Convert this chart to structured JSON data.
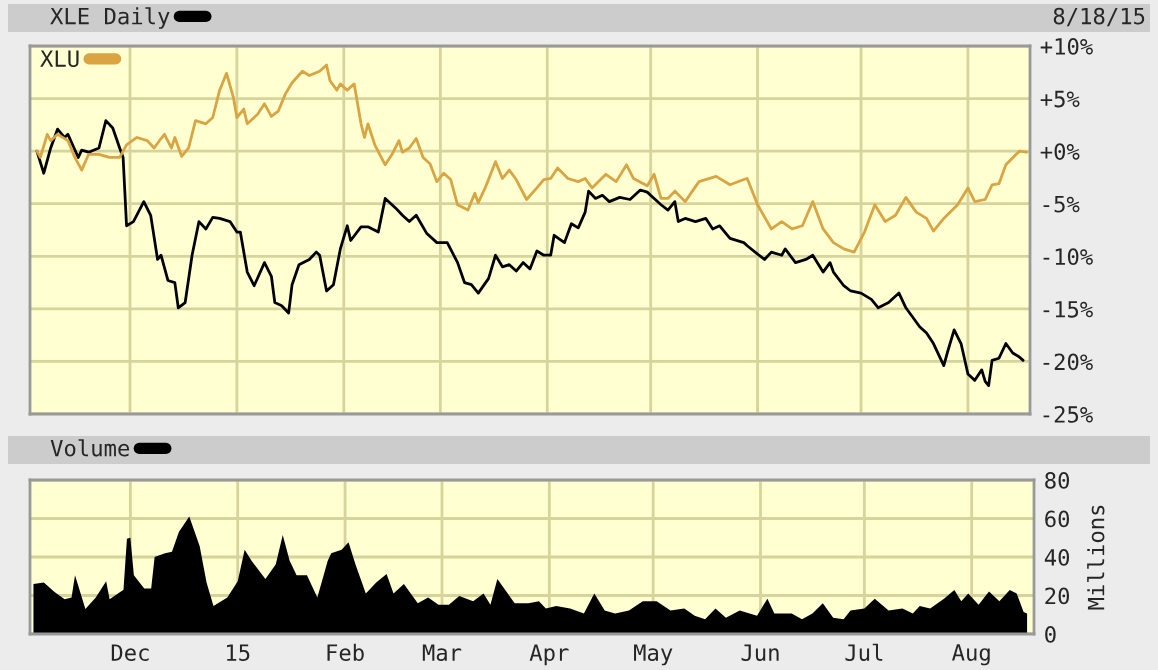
{
  "chart_data": [
    {
      "type": "line",
      "annotations": [
        "8/18/15"
      ],
      "legend": "top left",
      "grid": true,
      "tick_labels": "y",
      "xlim": [
        "2014-11-02",
        "2015-08-19"
      ],
      "ylim": [
        -25,
        10
      ],
      "xticks": [
        {
          "value": "2014-12-01",
          "label": null
        },
        {
          "value": "2015-01-01",
          "label": null
        },
        {
          "value": "2015-02-01",
          "label": null
        },
        {
          "value": "2015-03-01",
          "label": null
        },
        {
          "value": "2015-04-01",
          "label": null
        },
        {
          "value": "2015-05-01",
          "label": null
        },
        {
          "value": "2015-06-01",
          "label": null
        },
        {
          "value": "2015-07-01",
          "label": null
        },
        {
          "value": "2015-08-01",
          "label": null
        }
      ],
      "yticks": [
        {
          "value": 10,
          "label": "+10%"
        },
        {
          "value": 5,
          "label": "+5%"
        },
        {
          "value": 0,
          "label": "+0%"
        },
        {
          "value": -5,
          "label": "-5%"
        },
        {
          "value": -10,
          "label": "-10%"
        },
        {
          "value": -15,
          "label": "-15%"
        },
        {
          "value": -20,
          "label": "-20%"
        },
        {
          "value": -25,
          "label": "-25%"
        }
      ],
      "series": [
        {
          "name": "XLE Daily",
          "color": "#000000",
          "x": [
            "2014-11-04",
            "2014-11-06",
            "2014-11-08",
            "2014-11-10",
            "2014-11-12",
            "2014-11-13",
            "2014-11-16",
            "2014-11-17",
            "2014-11-19",
            "2014-11-22",
            "2014-11-24",
            "2014-11-26",
            "2014-11-28",
            "2014-11-29",
            "2014-11-30",
            "2014-12-02",
            "2014-12-05",
            "2014-12-07",
            "2014-12-09",
            "2014-12-10",
            "2014-12-12",
            "2014-12-14",
            "2014-12-15",
            "2014-12-17",
            "2014-12-19",
            "2014-12-21",
            "2014-12-23",
            "2014-12-25",
            "2014-12-27",
            "2014-12-30",
            "2015-01-01",
            "2015-01-02",
            "2015-01-04",
            "2015-01-06",
            "2015-01-09",
            "2015-01-11",
            "2015-01-12",
            "2015-01-14",
            "2015-01-16",
            "2015-01-17",
            "2015-01-19",
            "2015-01-22",
            "2015-01-24",
            "2015-01-25",
            "2015-01-27",
            "2015-01-29",
            "2015-01-31",
            "2015-02-02",
            "2015-02-03",
            "2015-02-06",
            "2015-02-08",
            "2015-02-11",
            "2015-02-13",
            "2015-02-16",
            "2015-02-18",
            "2015-02-20",
            "2015-02-22",
            "2015-02-25",
            "2015-02-28",
            "2015-03-03",
            "2015-03-06",
            "2015-03-08",
            "2015-03-10",
            "2015-03-12",
            "2015-03-15",
            "2015-03-17",
            "2015-03-19",
            "2015-03-21",
            "2015-03-23",
            "2015-03-25",
            "2015-03-27",
            "2015-03-29",
            "2015-03-31",
            "2015-04-02",
            "2015-04-03",
            "2015-04-06",
            "2015-04-08",
            "2015-04-10",
            "2015-04-12",
            "2015-04-13",
            "2015-04-15",
            "2015-04-17",
            "2015-04-19",
            "2015-04-22",
            "2015-04-25",
            "2015-04-28",
            "2015-04-30",
            "2015-05-02",
            "2015-05-04",
            "2015-05-06",
            "2015-05-08",
            "2015-05-09",
            "2015-05-11",
            "2015-05-14",
            "2015-05-17",
            "2015-05-19",
            "2015-05-21",
            "2015-05-24",
            "2015-05-28",
            "2015-05-29",
            "2015-06-01",
            "2015-06-03",
            "2015-06-05",
            "2015-06-08",
            "2015-06-09",
            "2015-06-12",
            "2015-06-15",
            "2015-06-17",
            "2015-06-20",
            "2015-06-22",
            "2015-06-23",
            "2015-06-26",
            "2015-06-28",
            "2015-07-01",
            "2015-07-04",
            "2015-07-06",
            "2015-07-09",
            "2015-07-12",
            "2015-07-14",
            "2015-07-18",
            "2015-07-20",
            "2015-07-22",
            "2015-07-25",
            "2015-07-26",
            "2015-07-28",
            "2015-07-30",
            "2015-08-01",
            "2015-08-03",
            "2015-08-05",
            "2015-08-06",
            "2015-08-07",
            "2015-08-08",
            "2015-08-10",
            "2015-08-12",
            "2015-08-14",
            "2015-08-16",
            "2015-08-17"
          ],
          "values": [
            0,
            -2.1,
            0.3,
            2.1,
            1.3,
            1.6,
            -0.6,
            0.1,
            -0.1,
            0.3,
            2.9,
            2.2,
            0.3,
            -0.6,
            -7.1,
            -6.7,
            -4.8,
            -6.1,
            -10.3,
            -9.9,
            -12.3,
            -12.5,
            -14.9,
            -14.4,
            -9.9,
            -6.7,
            -7.4,
            -6.3,
            -6.4,
            -6.7,
            -7.7,
            -7.7,
            -11.5,
            -12.8,
            -10.6,
            -11.9,
            -14.4,
            -14.7,
            -15.4,
            -12.7,
            -10.8,
            -10.3,
            -9.6,
            -9.9,
            -13.3,
            -12.7,
            -9.3,
            -7.1,
            -8.5,
            -7.2,
            -7.2,
            -7.7,
            -4.5,
            -5.4,
            -6.1,
            -6.7,
            -6.1,
            -7.8,
            -8.7,
            -8.7,
            -10.6,
            -12.5,
            -12.7,
            -13.5,
            -12.1,
            -9.9,
            -11,
            -10.8,
            -11.4,
            -10.6,
            -11.2,
            -9.5,
            -9.9,
            -9.9,
            -8,
            -8.7,
            -6.9,
            -7.3,
            -5.8,
            -3.8,
            -4.5,
            -4.2,
            -4.8,
            -4.4,
            -4.6,
            -3.7,
            -3.9,
            -4.5,
            -5.1,
            -5.6,
            -4.8,
            -6.7,
            -6.4,
            -6.7,
            -6.4,
            -7.4,
            -7.1,
            -8.3,
            -8.7,
            -9,
            -9.8,
            -10.3,
            -9.6,
            -9.9,
            -9.3,
            -10.6,
            -10.3,
            -9.9,
            -11.5,
            -10.6,
            -11.5,
            -12.8,
            -13.3,
            -13.5,
            -14.1,
            -14.9,
            -14.4,
            -13.5,
            -14.9,
            -16.7,
            -17.3,
            -18.3,
            -20.4,
            -19.2,
            -17,
            -18.3,
            -21.2,
            -21.8,
            -20.8,
            -21.9,
            -22.3,
            -19.9,
            -19.7,
            -18.3,
            -19.2,
            -19.6,
            -19.9
          ]
        },
        {
          "name": "XLU",
          "color": "#d9a441",
          "x": [
            "2014-11-04",
            "2014-11-05",
            "2014-11-07",
            "2014-11-08",
            "2014-11-10",
            "2014-11-13",
            "2014-11-15",
            "2014-11-17",
            "2014-11-19",
            "2014-11-22",
            "2014-11-25",
            "2014-11-28",
            "2014-11-30",
            "2014-12-03",
            "2014-12-06",
            "2014-12-08",
            "2014-12-10",
            "2014-12-11",
            "2014-12-13",
            "2014-12-14",
            "2014-12-16",
            "2014-12-18",
            "2014-12-20",
            "2014-12-23",
            "2014-12-25",
            "2014-12-27",
            "2014-12-29",
            "2014-12-31",
            "2015-01-01",
            "2015-01-03",
            "2015-01-04",
            "2015-01-07",
            "2015-01-09",
            "2015-01-11",
            "2015-01-13",
            "2015-01-15",
            "2015-01-17",
            "2015-01-20",
            "2015-01-22",
            "2015-01-25",
            "2015-01-27",
            "2015-01-28",
            "2015-01-30",
            "2015-01-31",
            "2015-02-02",
            "2015-02-04",
            "2015-02-06",
            "2015-02-07",
            "2015-02-08",
            "2015-02-10",
            "2015-02-13",
            "2015-02-15",
            "2015-02-17",
            "2015-02-18",
            "2015-02-20",
            "2015-02-22",
            "2015-02-24",
            "2015-02-26",
            "2015-02-28",
            "2015-03-02",
            "2015-03-04",
            "2015-03-06",
            "2015-03-09",
            "2015-03-11",
            "2015-03-12",
            "2015-03-14",
            "2015-03-17",
            "2015-03-19",
            "2015-03-21",
            "2015-03-23",
            "2015-03-26",
            "2015-03-29",
            "2015-03-31",
            "2015-04-02",
            "2015-04-04",
            "2015-04-07",
            "2015-04-10",
            "2015-04-12",
            "2015-04-14",
            "2015-04-18",
            "2015-04-21",
            "2015-04-24",
            "2015-04-26",
            "2015-04-30",
            "2015-05-02",
            "2015-05-04",
            "2015-05-06",
            "2015-05-08",
            "2015-05-11",
            "2015-05-15",
            "2015-05-20",
            "2015-05-24",
            "2015-05-28",
            "2015-05-29",
            "2015-06-01",
            "2015-06-05",
            "2015-06-08",
            "2015-06-11",
            "2015-06-14",
            "2015-06-17",
            "2015-06-20",
            "2015-06-23",
            "2015-06-26",
            "2015-06-29",
            "2015-07-02",
            "2015-07-05",
            "2015-07-08",
            "2015-07-11",
            "2015-07-14",
            "2015-07-17",
            "2015-07-20",
            "2015-07-22",
            "2015-07-25",
            "2015-07-29",
            "2015-08-01",
            "2015-08-03",
            "2015-08-06",
            "2015-08-08",
            "2015-08-10",
            "2015-08-12",
            "2015-08-15",
            "2015-08-16",
            "2015-08-18"
          ],
          "values": [
            0,
            -0.6,
            1.6,
            1,
            1.6,
            1,
            -0.6,
            -1.8,
            -0.3,
            -0.3,
            -0.6,
            -0.6,
            0.6,
            1.3,
            1,
            0.3,
            1.2,
            1.6,
            0.3,
            1.3,
            -0.5,
            0.3,
            2.9,
            2.6,
            3.2,
            5.8,
            7.4,
            5.1,
            3.2,
            4,
            2.6,
            3.5,
            4.5,
            3.3,
            3.8,
            5.4,
            6.5,
            7.6,
            7.2,
            7.6,
            8.2,
            6.7,
            5.8,
            6.4,
            5.8,
            6.4,
            2.6,
            1.3,
            2.6,
            0.6,
            -1.3,
            -0.3,
            1,
            -0.1,
            0.3,
            1.2,
            -0.6,
            -1.2,
            -2.9,
            -2.1,
            -2.7,
            -5.1,
            -5.6,
            -4,
            -4.9,
            -3.5,
            -1,
            -2.6,
            -1.8,
            -2.7,
            -4.6,
            -3.5,
            -2.7,
            -2.6,
            -1.6,
            -2.6,
            -2.9,
            -2.6,
            -3.5,
            -2.2,
            -2.9,
            -1.3,
            -2.6,
            -3.3,
            -2.2,
            -4.5,
            -4.5,
            -3.8,
            -4.8,
            -2.9,
            -2.4,
            -3.2,
            -2.7,
            -2.6,
            -5.1,
            -7.4,
            -6.7,
            -7.4,
            -7.1,
            -4.8,
            -7.4,
            -8.7,
            -9.3,
            -9.6,
            -7.7,
            -5.1,
            -6.7,
            -6.1,
            -4.4,
            -5.8,
            -6.4,
            -7.6,
            -6.4,
            -5.1,
            -3.5,
            -4.8,
            -4.6,
            -3.2,
            -3.1,
            -1.3,
            -0.3,
            0,
            -0.1
          ]
        }
      ]
    },
    {
      "type": "area",
      "ylabel": "Millions",
      "legend": "top",
      "grid": true,
      "xlim": [
        "2014-11-02",
        "2015-08-19"
      ],
      "ylim": [
        0,
        80
      ],
      "xticks": [
        {
          "value": "2014-12-01",
          "label": "Dec"
        },
        {
          "value": "2015-01-01",
          "label": "15"
        },
        {
          "value": "2015-02-01",
          "label": "Feb"
        },
        {
          "value": "2015-03-01",
          "label": "Mar"
        },
        {
          "value": "2015-04-01",
          "label": "Apr"
        },
        {
          "value": "2015-05-01",
          "label": "May"
        },
        {
          "value": "2015-06-01",
          "label": "Jun"
        },
        {
          "value": "2015-07-01",
          "label": "Jul"
        },
        {
          "value": "2015-08-01",
          "label": "Aug"
        }
      ],
      "yticks": [
        0,
        20,
        40,
        60,
        80
      ],
      "series": [
        {
          "name": "Volume",
          "color": "#000000",
          "x": [
            "2014-11-03",
            "2014-11-06",
            "2014-11-09",
            "2014-11-12",
            "2014-11-14",
            "2014-11-15",
            "2014-11-18",
            "2014-11-21",
            "2014-11-24",
            "2014-11-25",
            "2014-11-29",
            "2014-11-30",
            "2014-12-01",
            "2014-12-02",
            "2014-12-05",
            "2014-12-07",
            "2014-12-08",
            "2014-12-11",
            "2014-12-13",
            "2014-12-15",
            "2014-12-18",
            "2014-12-21",
            "2014-12-23",
            "2014-12-25",
            "2014-12-29",
            "2015-01-01",
            "2015-01-03",
            "2015-01-05",
            "2015-01-09",
            "2015-01-12",
            "2015-01-14",
            "2015-01-16",
            "2015-01-18",
            "2015-01-21",
            "2015-01-24",
            "2015-01-27",
            "2015-01-28",
            "2015-01-31",
            "2015-02-02",
            "2015-02-04",
            "2015-02-07",
            "2015-02-10",
            "2015-02-13",
            "2015-02-15",
            "2015-02-18",
            "2015-02-22",
            "2015-02-25",
            "2015-02-28",
            "2015-03-03",
            "2015-03-06",
            "2015-03-10",
            "2015-03-13",
            "2015-03-15",
            "2015-03-17",
            "2015-03-20",
            "2015-03-22",
            "2015-03-26",
            "2015-03-29",
            "2015-03-31",
            "2015-04-03",
            "2015-04-07",
            "2015-04-11",
            "2015-04-14",
            "2015-04-17",
            "2015-04-20",
            "2015-04-24",
            "2015-04-28",
            "2015-05-02",
            "2015-05-06",
            "2015-05-10",
            "2015-05-13",
            "2015-05-16",
            "2015-05-19",
            "2015-05-22",
            "2015-05-26",
            "2015-05-31",
            "2015-06-03",
            "2015-06-05",
            "2015-06-10",
            "2015-06-13",
            "2015-06-16",
            "2015-06-19",
            "2015-06-22",
            "2015-06-25",
            "2015-06-27",
            "2015-07-01",
            "2015-07-04",
            "2015-07-08",
            "2015-07-12",
            "2015-07-15",
            "2015-07-17",
            "2015-07-20",
            "2015-07-24",
            "2015-07-27",
            "2015-07-29",
            "2015-07-31",
            "2015-08-03",
            "2015-08-06",
            "2015-08-09",
            "2015-08-12",
            "2015-08-14",
            "2015-08-16",
            "2015-08-17"
          ],
          "values": [
            26,
            26.7,
            22,
            18,
            19,
            30.5,
            13,
            19,
            27.4,
            18,
            23,
            49.5,
            50,
            30.5,
            23.6,
            23.6,
            40,
            42,
            42.7,
            53,
            61,
            45.7,
            26.7,
            14.5,
            19,
            27.4,
            43.8,
            38,
            28.6,
            36.2,
            51.4,
            38,
            30.5,
            30.5,
            19,
            38,
            42,
            43.8,
            47.6,
            36.2,
            21,
            26.7,
            31.2,
            21,
            26,
            16,
            19,
            15.2,
            15.2,
            19.8,
            17,
            21,
            15.2,
            28.6,
            21,
            16,
            16,
            17,
            13.3,
            14.5,
            13.3,
            10.7,
            21,
            12.2,
            10.7,
            12.2,
            17,
            17,
            12.2,
            13.3,
            9.5,
            7.6,
            13.3,
            8.4,
            12.2,
            9.5,
            18.3,
            10.7,
            10.7,
            7.6,
            10.7,
            16,
            8.4,
            7.6,
            12.2,
            13.3,
            18.3,
            12.2,
            13.3,
            10.7,
            14.5,
            13.3,
            18.3,
            22.9,
            17,
            21,
            15.2,
            22.1,
            17,
            22.9,
            21,
            11.4,
            10.7
          ]
        }
      ]
    }
  ]
}
